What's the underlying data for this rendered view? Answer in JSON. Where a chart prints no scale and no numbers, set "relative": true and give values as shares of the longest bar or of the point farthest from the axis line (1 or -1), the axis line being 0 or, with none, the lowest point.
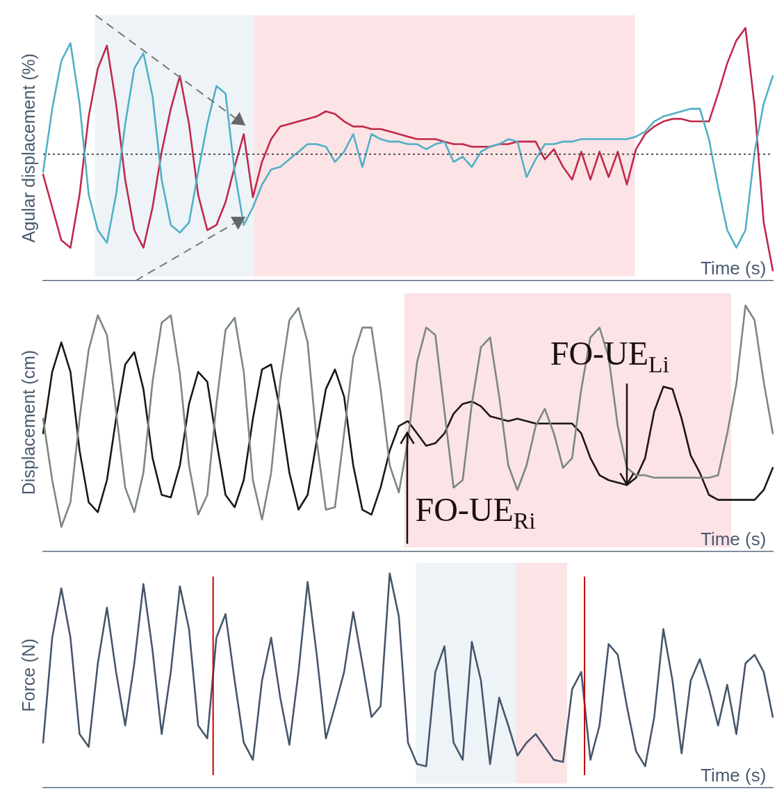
{
  "chart_data": [
    {
      "type": "line",
      "relative": true,
      "legend": false,
      "ylabel": "Agular displacement (%)",
      "xlabel": "Time (s)",
      "categories": [
        null,
        null,
        null,
        null,
        null,
        null,
        null,
        null,
        null,
        null,
        null,
        null,
        null,
        null,
        null,
        null,
        null,
        null,
        null,
        null,
        null,
        null,
        null,
        null,
        null,
        null,
        null,
        null,
        null,
        null,
        null,
        null,
        null,
        null,
        null,
        null,
        null,
        null,
        null,
        null,
        null,
        null,
        null,
        null,
        null,
        null,
        null,
        null,
        null,
        null,
        null,
        null,
        null,
        null,
        null,
        null,
        null,
        null,
        null,
        null,
        null,
        null,
        null,
        null,
        null,
        null,
        null,
        null,
        null,
        null,
        null,
        null,
        null,
        null,
        null,
        null,
        null,
        null,
        null,
        null,
        null
      ],
      "series": [
        {
          "color": "#4fb0c6",
          "values": [
            0.43,
            0.68,
            0.87,
            0.94,
            0.7,
            0.34,
            0.2,
            0.15,
            0.34,
            0.62,
            0.84,
            0.9,
            0.73,
            0.4,
            0.22,
            0.19,
            0.23,
            0.43,
            0.62,
            0.77,
            0.74,
            0.43,
            0.22,
            0.29,
            0.38,
            0.44,
            0.45,
            0.48,
            0.51,
            0.54,
            0.54,
            0.53,
            0.47,
            0.51,
            0.58,
            0.45,
            0.58,
            0.56,
            0.55,
            0.55,
            0.54,
            0.54,
            0.52,
            0.54,
            0.55,
            0.47,
            0.49,
            0.45,
            0.51,
            0.53,
            0.54,
            0.56,
            0.55,
            0.41,
            0.48,
            0.54,
            0.54,
            0.55,
            0.55,
            0.56,
            0.56,
            0.56,
            0.56,
            0.56,
            0.56,
            0.57,
            0.59,
            0.63,
            0.65,
            0.66,
            0.67,
            0.68,
            0.68,
            0.56,
            0.37,
            0.2,
            0.13,
            0.2,
            0.51,
            0.7,
            0.81
          ]
        },
        {
          "color": "#c0284a",
          "values": [
            0.42,
            0.29,
            0.16,
            0.13,
            0.34,
            0.65,
            0.84,
            0.93,
            0.7,
            0.4,
            0.2,
            0.13,
            0.29,
            0.51,
            0.68,
            0.81,
            0.62,
            0.34,
            0.2,
            0.22,
            0.31,
            0.45,
            0.58,
            0.33,
            0.47,
            0.56,
            0.61,
            0.62,
            0.63,
            0.64,
            0.65,
            0.67,
            0.66,
            0.63,
            0.61,
            0.61,
            0.6,
            0.6,
            0.59,
            0.58,
            0.57,
            0.56,
            0.56,
            0.56,
            0.55,
            0.54,
            0.54,
            0.53,
            0.53,
            0.53,
            0.54,
            0.54,
            0.55,
            0.55,
            0.55,
            0.48,
            0.52,
            0.45,
            0.4,
            0.51,
            0.4,
            0.51,
            0.41,
            0.51,
            0.38,
            0.52,
            0.58,
            0.61,
            0.63,
            0.64,
            0.64,
            0.63,
            0.63,
            0.63,
            0.74,
            0.86,
            0.95,
            1.0,
            0.69,
            0.23,
            0.04
          ]
        }
      ],
      "ref_lines": [
        {
          "axis": "y",
          "value": 0.5,
          "color": "#555555",
          "line_style": "dotted"
        }
      ]
    },
    {
      "type": "line",
      "relative": true,
      "legend": false,
      "ylabel": "Displacement (cm)",
      "xlabel": "Time (s)",
      "categories": [
        null,
        null,
        null,
        null,
        null,
        null,
        null,
        null,
        null,
        null,
        null,
        null,
        null,
        null,
        null,
        null,
        null,
        null,
        null,
        null,
        null,
        null,
        null,
        null,
        null,
        null,
        null,
        null,
        null,
        null,
        null,
        null,
        null,
        null,
        null,
        null,
        null,
        null,
        null,
        null,
        null,
        null,
        null,
        null,
        null,
        null,
        null,
        null,
        null,
        null,
        null,
        null,
        null,
        null,
        null,
        null,
        null,
        null,
        null,
        null,
        null,
        null,
        null,
        null,
        null,
        null,
        null,
        null,
        null,
        null,
        null,
        null,
        null,
        null,
        null,
        null,
        null,
        null,
        null,
        null,
        null
      ],
      "series": [
        {
          "color": "#7c8682",
          "values": [
            0.54,
            0.29,
            0.1,
            0.2,
            0.54,
            0.82,
            0.96,
            0.88,
            0.57,
            0.26,
            0.16,
            0.32,
            0.69,
            0.93,
            0.96,
            0.72,
            0.35,
            0.15,
            0.23,
            0.6,
            0.9,
            0.95,
            0.73,
            0.29,
            0.13,
            0.32,
            0.69,
            0.94,
            0.99,
            0.85,
            0.45,
            0.17,
            0.18,
            0.48,
            0.79,
            0.91,
            0.91,
            0.66,
            0.35,
            0.24,
            0.45,
            0.77,
            0.91,
            0.88,
            0.57,
            0.26,
            0.29,
            0.6,
            0.83,
            0.87,
            0.63,
            0.35,
            0.25,
            0.35,
            0.51,
            0.58,
            0.48,
            0.34,
            0.38,
            0.66,
            0.87,
            0.91,
            0.79,
            0.51,
            0.34,
            0.31,
            0.31,
            0.3,
            0.3,
            0.3,
            0.3,
            0.3,
            0.3,
            0.3,
            0.31,
            0.48,
            0.68,
            1.0,
            0.94,
            0.69,
            0.48
          ]
        },
        {
          "color": "#1c1616",
          "values": [
            0.48,
            0.73,
            0.85,
            0.73,
            0.41,
            0.2,
            0.16,
            0.29,
            0.54,
            0.76,
            0.81,
            0.66,
            0.38,
            0.23,
            0.22,
            0.35,
            0.6,
            0.73,
            0.69,
            0.45,
            0.23,
            0.18,
            0.29,
            0.54,
            0.74,
            0.76,
            0.57,
            0.32,
            0.17,
            0.23,
            0.45,
            0.66,
            0.74,
            0.63,
            0.35,
            0.17,
            0.15,
            0.26,
            0.41,
            0.51,
            0.53,
            0.48,
            0.43,
            0.44,
            0.48,
            0.56,
            0.6,
            0.61,
            0.59,
            0.55,
            0.54,
            0.53,
            0.54,
            0.53,
            0.52,
            0.52,
            0.52,
            0.52,
            0.52,
            0.48,
            0.38,
            0.31,
            0.29,
            0.28,
            0.27,
            0.3,
            0.38,
            0.57,
            0.67,
            0.66,
            0.54,
            0.39,
            0.32,
            0.23,
            0.21,
            0.21,
            0.21,
            0.21,
            0.21,
            0.25,
            0.34
          ]
        }
      ],
      "annotations": [
        "FO-UE$_{Ri}$",
        "FO-UE$_{Li}$"
      ]
    },
    {
      "type": "line",
      "relative": true,
      "legend": false,
      "ylabel": "Force (N)",
      "xlabel": "Time (s)",
      "categories": [
        null,
        null,
        null,
        null,
        null,
        null,
        null,
        null,
        null,
        null,
        null,
        null,
        null,
        null,
        null,
        null,
        null,
        null,
        null,
        null,
        null,
        null,
        null,
        null,
        null,
        null,
        null,
        null,
        null,
        null,
        null,
        null,
        null,
        null,
        null,
        null,
        null,
        null,
        null,
        null,
        null,
        null,
        null,
        null,
        null,
        null,
        null,
        null,
        null,
        null,
        null,
        null,
        null,
        null,
        null,
        null,
        null,
        null,
        null,
        null,
        null,
        null,
        null,
        null,
        null,
        null,
        null,
        null,
        null,
        null,
        null,
        null,
        null,
        null,
        null,
        null,
        null,
        null,
        null,
        null,
        null
      ],
      "series": [
        {
          "color": "#46566b",
          "values": [
            0.21,
            0.7,
            0.93,
            0.7,
            0.25,
            0.19,
            0.58,
            0.84,
            0.54,
            0.29,
            0.58,
            0.95,
            0.64,
            0.25,
            0.54,
            0.94,
            0.74,
            0.29,
            0.23,
            0.7,
            0.81,
            0.5,
            0.21,
            0.13,
            0.5,
            0.7,
            0.42,
            0.2,
            0.54,
            0.96,
            0.62,
            0.23,
            0.38,
            0.54,
            0.82,
            0.58,
            0.33,
            0.38,
            1.0,
            0.8,
            0.21,
            0.11,
            0.1,
            0.54,
            0.66,
            0.21,
            0.13,
            0.68,
            0.5,
            0.11,
            0.42,
            0.29,
            0.15,
            0.21,
            0.25,
            0.19,
            0.13,
            0.12,
            0.46,
            0.54,
            0.13,
            0.29,
            0.67,
            0.62,
            0.38,
            0.17,
            0.1,
            0.33,
            0.74,
            0.5,
            0.16,
            0.5,
            0.6,
            0.46,
            0.29,
            0.48,
            0.25,
            0.58,
            0.62,
            0.54,
            0.33
          ]
        }
      ]
    }
  ]
}
